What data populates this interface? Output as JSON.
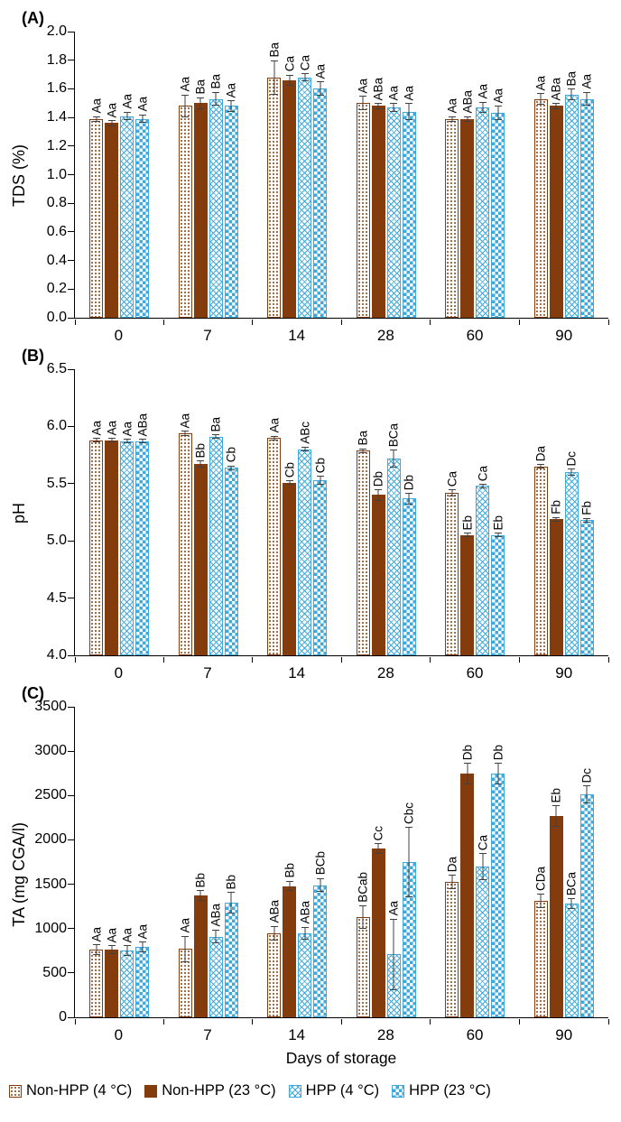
{
  "figure": {
    "xlabel": "Days of storage",
    "colors": {
      "brown": "#843C0C",
      "blue": "#3FA9DC",
      "axis": "#000000",
      "error_bar": "#404040"
    },
    "legend": [
      {
        "label": "Non-HPP (4 °C)",
        "pattern": "dots"
      },
      {
        "label": "Non-HPP (23 °C)",
        "pattern": "solid"
      },
      {
        "label": "HPP (4 °C)",
        "pattern": "cross"
      },
      {
        "label": "HPP (23 °C)",
        "pattern": "check"
      }
    ]
  },
  "chart_data": [
    {
      "panel": "(A)",
      "type": "bar",
      "ylabel": "TDS (%)",
      "xlabel": "",
      "ylim": [
        0.0,
        2.0
      ],
      "ytick_step": 0.2,
      "ytick_labels": [
        "0.0",
        "0.2",
        "0.4",
        "0.6",
        "0.8",
        "1.0",
        "1.2",
        "1.4",
        "1.6",
        "1.8",
        "2.0"
      ],
      "categories": [
        "0",
        "7",
        "14",
        "28",
        "60",
        "90"
      ],
      "grid": false,
      "legend_position": "bottom",
      "series": [
        {
          "name": "Non-HPP (4 °C)",
          "pattern": "dots",
          "values": [
            1.39,
            1.48,
            1.68,
            1.5,
            1.39,
            1.53
          ],
          "errors": [
            0.02,
            0.08,
            0.12,
            0.05,
            0.02,
            0.04
          ],
          "labels": [
            "Aa",
            "Aa",
            "Ba",
            "Aa",
            "Aa",
            "Aa"
          ]
        },
        {
          "name": "Non-HPP (23 °C)",
          "pattern": "solid",
          "values": [
            1.36,
            1.5,
            1.66,
            1.48,
            1.39,
            1.48
          ],
          "errors": [
            0.02,
            0.04,
            0.04,
            0.02,
            0.02,
            0.02
          ],
          "labels": [
            "Aa",
            "Ba",
            "Ca",
            "ABa",
            "ABa",
            "ABa"
          ]
        },
        {
          "name": "HPP (4 °C)",
          "pattern": "cross",
          "values": [
            1.41,
            1.53,
            1.68,
            1.47,
            1.47,
            1.56
          ],
          "errors": [
            0.03,
            0.05,
            0.03,
            0.03,
            0.04,
            0.04
          ],
          "labels": [
            "Aa",
            "Ba",
            "Ca",
            "Aa",
            "Aa",
            "Ba"
          ]
        },
        {
          "name": "HPP (23 °C)",
          "pattern": "check",
          "values": [
            1.39,
            1.48,
            1.6,
            1.44,
            1.43,
            1.53
          ],
          "errors": [
            0.03,
            0.04,
            0.05,
            0.06,
            0.05,
            0.05
          ],
          "labels": [
            "Aa",
            "Aa",
            "Aa",
            "Aa",
            "Aa",
            "Aa"
          ]
        }
      ]
    },
    {
      "panel": "(B)",
      "type": "bar",
      "ylabel": "pH",
      "xlabel": "",
      "ylim": [
        4.0,
        6.5
      ],
      "ytick_step": 0.5,
      "ytick_labels": [
        "4.0",
        "4.5",
        "5.0",
        "5.5",
        "6.0",
        "6.5"
      ],
      "categories": [
        "0",
        "7",
        "14",
        "28",
        "60",
        "90"
      ],
      "grid": false,
      "legend_position": "bottom",
      "series": [
        {
          "name": "Non-HPP (4 °C)",
          "pattern": "dots",
          "values": [
            5.88,
            5.94,
            5.9,
            5.79,
            5.42,
            5.65
          ],
          "errors": [
            0.02,
            0.02,
            0.02,
            0.02,
            0.03,
            0.02
          ],
          "labels": [
            "Aa",
            "Aa",
            "Aa",
            "Ba",
            "Ca",
            "Da"
          ]
        },
        {
          "name": "Non-HPP (23 °C)",
          "pattern": "solid",
          "values": [
            5.88,
            5.67,
            5.51,
            5.4,
            5.05,
            5.19
          ],
          "errors": [
            0.02,
            0.03,
            0.02,
            0.05,
            0.02,
            0.02
          ],
          "labels": [
            "Aa",
            "Bb",
            "Cb",
            "Db",
            "Eb",
            "Fb"
          ]
        },
        {
          "name": "HPP (4 °C)",
          "pattern": "cross",
          "values": [
            5.87,
            5.91,
            5.8,
            5.72,
            5.48,
            5.6
          ],
          "errors": [
            0.02,
            0.02,
            0.02,
            0.08,
            0.02,
            0.03
          ],
          "labels": [
            "Aa",
            "Ba",
            "ABc",
            "BCa",
            "Ca",
            "Dc"
          ]
        },
        {
          "name": "HPP (23 °C)",
          "pattern": "check",
          "values": [
            5.87,
            5.64,
            5.53,
            5.37,
            5.05,
            5.18
          ],
          "errors": [
            0.02,
            0.02,
            0.04,
            0.05,
            0.02,
            0.02
          ],
          "labels": [
            "ABa",
            "Cb",
            "Cb",
            "Db",
            "Eb",
            "Fb"
          ]
        }
      ]
    },
    {
      "panel": "(C)",
      "type": "bar",
      "ylabel": "TA (mg CGA/l)",
      "xlabel": "Days of storage",
      "ylim": [
        0,
        3500
      ],
      "ytick_step": 500,
      "ytick_labels": [
        "0",
        "500",
        "1000",
        "1500",
        "2000",
        "2500",
        "3000",
        "3500"
      ],
      "categories": [
        "0",
        "7",
        "14",
        "28",
        "60",
        "90"
      ],
      "grid": false,
      "legend_position": "bottom",
      "series": [
        {
          "name": "Non-HPP (4 °C)",
          "pattern": "dots",
          "values": [
            760,
            770,
            950,
            1130,
            1530,
            1310
          ],
          "errors": [
            60,
            150,
            80,
            130,
            80,
            80
          ],
          "labels": [
            "Aa",
            "Aa",
            "ABa",
            "BCab",
            "Da",
            "CDa"
          ]
        },
        {
          "name": "Non-HPP (23 °C)",
          "pattern": "solid",
          "values": [
            760,
            1370,
            1480,
            1900,
            2750,
            2270
          ],
          "errors": [
            50,
            60,
            60,
            60,
            120,
            120
          ],
          "labels": [
            "Aa",
            "Bb",
            "Bb",
            "Cc",
            "Db",
            "Eb"
          ]
        },
        {
          "name": "HPP (4 °C)",
          "pattern": "cross",
          "values": [
            750,
            910,
            950,
            710,
            1700,
            1280
          ],
          "errors": [
            60,
            80,
            70,
            400,
            150,
            60
          ],
          "labels": [
            "Aa",
            "ABa",
            "ABa",
            "Aa",
            "Ca",
            "BCa"
          ]
        },
        {
          "name": "HPP (23 °C)",
          "pattern": "check",
          "values": [
            790,
            1290,
            1490,
            1750,
            2750,
            2510
          ],
          "errors": [
            60,
            120,
            80,
            400,
            120,
            100
          ],
          "labels": [
            "Aa",
            "Bb",
            "BCb",
            "Cbc",
            "Db",
            "Dc"
          ]
        }
      ]
    }
  ]
}
